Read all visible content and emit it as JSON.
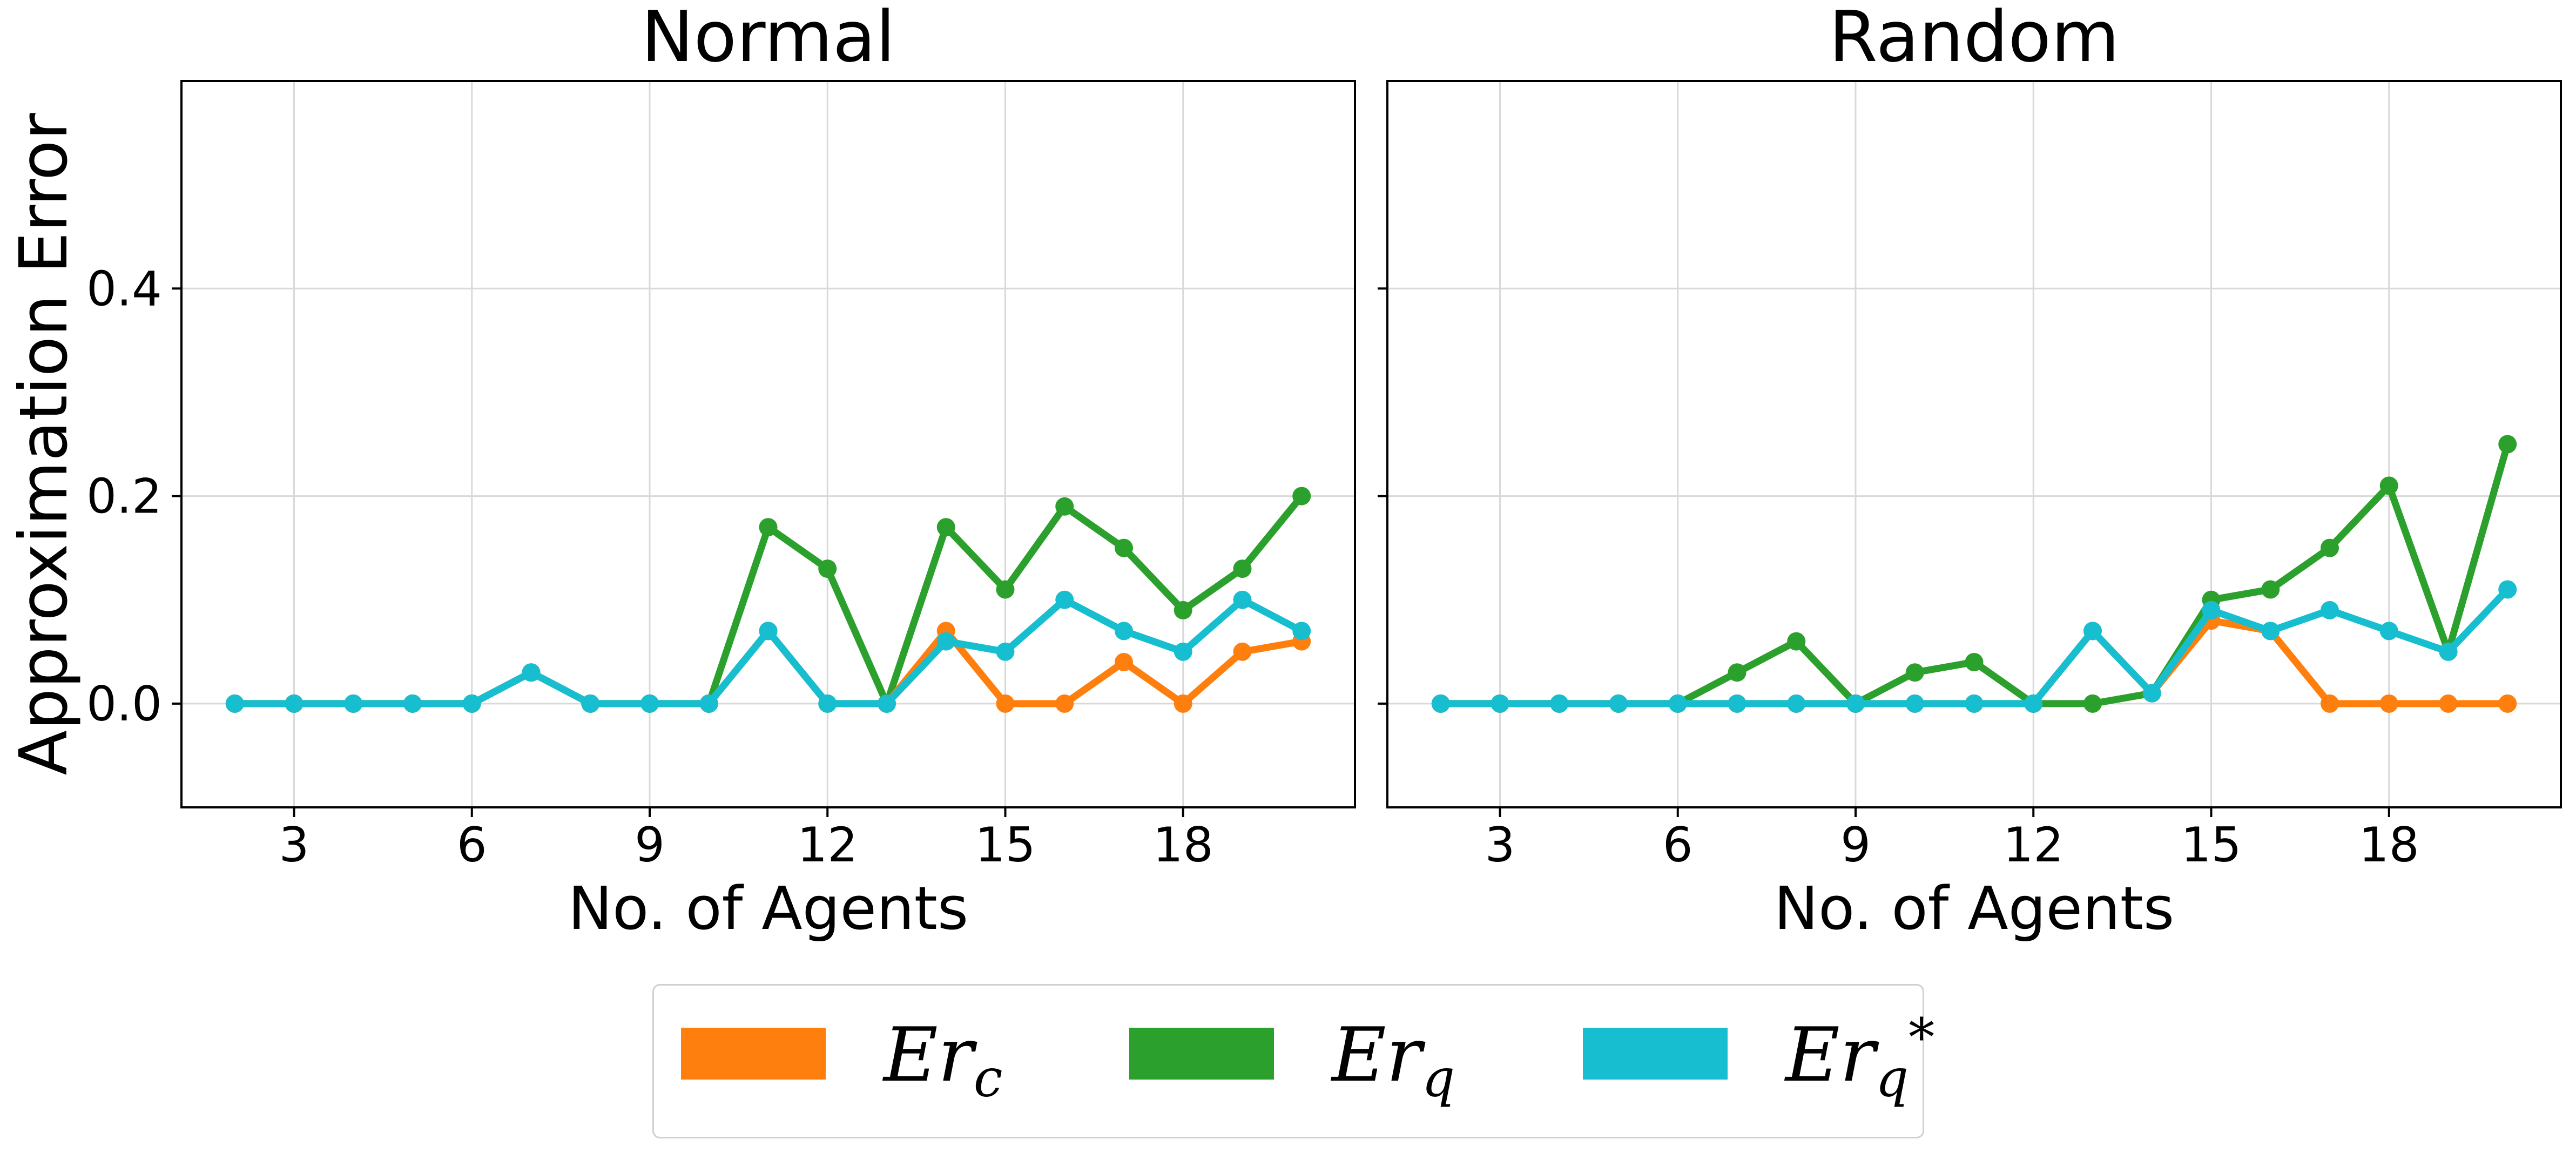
{
  "chart_data": [
    {
      "type": "line",
      "title": "Normal",
      "xlabel": "No. of Agents",
      "ylabel": "Approximation Error",
      "x": [
        2,
        3,
        4,
        5,
        6,
        7,
        8,
        9,
        10,
        11,
        12,
        13,
        14,
        15,
        16,
        17,
        18,
        19,
        20
      ],
      "xticks": [
        3,
        6,
        9,
        12,
        15,
        18
      ],
      "yticks": [
        0.0,
        0.2,
        0.4
      ],
      "ytick_labels": [
        "0.0",
        "0.2",
        "0.4"
      ],
      "xlim": [
        1.1,
        20.9
      ],
      "ylim": [
        -0.1,
        0.6
      ],
      "grid": true,
      "series": [
        {
          "name": "Er_q",
          "color": "#2ca02c",
          "values": [
            0,
            0,
            0,
            0,
            0,
            0.03,
            0,
            0,
            0,
            0.17,
            0.13,
            0,
            0.17,
            0.11,
            0.19,
            0.15,
            0.09,
            0.13,
            0.2
          ]
        },
        {
          "name": "Er_c",
          "color": "#ff7f0e",
          "values": [
            0,
            0,
            0,
            0,
            0,
            0.03,
            0,
            0,
            0,
            0.07,
            0,
            0,
            0.07,
            0,
            0,
            0.04,
            0,
            0.05,
            0.06
          ]
        },
        {
          "name": "Er_q*",
          "color": "#17becf",
          "values": [
            0,
            0,
            0,
            0,
            0,
            0.03,
            0,
            0,
            0,
            0.07,
            0,
            0,
            0.06,
            0.05,
            0.1,
            0.07,
            0.05,
            0.1,
            0.07
          ]
        }
      ]
    },
    {
      "type": "line",
      "title": "Random",
      "xlabel": "No. of Agents",
      "ylabel": "",
      "x": [
        2,
        3,
        4,
        5,
        6,
        7,
        8,
        9,
        10,
        11,
        12,
        13,
        14,
        15,
        16,
        17,
        18,
        19,
        20
      ],
      "xticks": [
        3,
        6,
        9,
        12,
        15,
        18
      ],
      "yticks": [
        0.0,
        0.2,
        0.4
      ],
      "ytick_labels": [
        "",
        "",
        ""
      ],
      "xlim": [
        1.1,
        20.9
      ],
      "ylim": [
        -0.1,
        0.6
      ],
      "grid": true,
      "series": [
        {
          "name": "Er_q",
          "color": "#2ca02c",
          "values": [
            0,
            0,
            0,
            0,
            0,
            0.03,
            0.06,
            0,
            0.03,
            0.04,
            0,
            0,
            0.01,
            0.1,
            0.11,
            0.15,
            0.21,
            0.05,
            0.25
          ]
        },
        {
          "name": "Er_c",
          "color": "#ff7f0e",
          "values": [
            0,
            0,
            0,
            0,
            0,
            0,
            0,
            0,
            0,
            0,
            0,
            0.07,
            0.01,
            0.08,
            0.07,
            0,
            0,
            0,
            0
          ]
        },
        {
          "name": "Er_q*",
          "color": "#17becf",
          "values": [
            0,
            0,
            0,
            0,
            0,
            0,
            0,
            0,
            0,
            0,
            0,
            0.07,
            0.01,
            0.09,
            0.07,
            0.09,
            0.07,
            0.05,
            0.11
          ]
        }
      ]
    }
  ],
  "legend": {
    "placement": "bottom-center",
    "entries": [
      {
        "base": "Er",
        "sub": "c",
        "sup": "",
        "color": "#ff7f0e"
      },
      {
        "base": "Er",
        "sub": "q",
        "sup": "",
        "color": "#2ca02c"
      },
      {
        "base": "Er",
        "sub": "q",
        "sup": "*",
        "color": "#17becf"
      }
    ]
  }
}
